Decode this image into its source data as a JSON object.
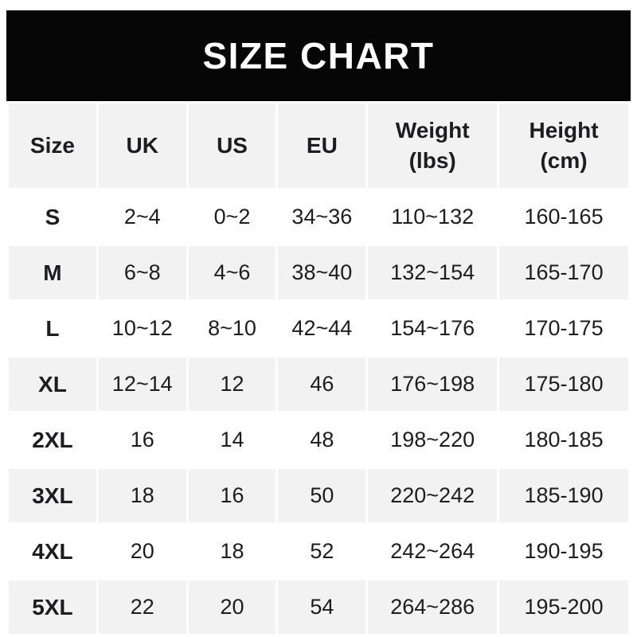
{
  "title": "SIZE CHART",
  "chart_data": {
    "type": "table",
    "title": "SIZE CHART",
    "columns": [
      "Size",
      "UK",
      "US",
      "EU",
      "Weight\n(lbs)",
      "Height\n(cm)"
    ],
    "rows": [
      [
        "S",
        "2~4",
        "0~2",
        "34~36",
        "110~132",
        "160-165"
      ],
      [
        "M",
        "6~8",
        "4~6",
        "38~40",
        "132~154",
        "165-170"
      ],
      [
        "L",
        "10~12",
        "8~10",
        "42~44",
        "154~176",
        "170-175"
      ],
      [
        "XL",
        "12~14",
        "12",
        "46",
        "176~198",
        "175-180"
      ],
      [
        "2XL",
        "16",
        "14",
        "48",
        "198~220",
        "180-185"
      ],
      [
        "3XL",
        "18",
        "16",
        "50",
        "220~242",
        "185-190"
      ],
      [
        "4XL",
        "20",
        "18",
        "52",
        "242~264",
        "190-195"
      ],
      [
        "5XL",
        "22",
        "20",
        "54",
        "264~286",
        "195-200"
      ]
    ],
    "layout": {
      "stripe_color": "#f2f2f2",
      "band_color": "#060606",
      "band_text_color": "#ffffff",
      "first_data_row_background": "#ffffff"
    }
  }
}
